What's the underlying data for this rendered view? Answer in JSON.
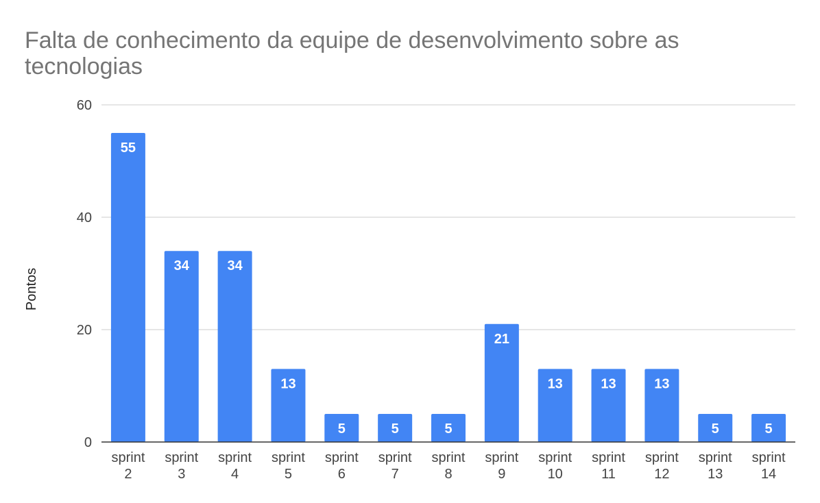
{
  "chart_data": {
    "type": "bar",
    "title_lines": [
      "Falta de conhecimento da equipe de desenvolvimento sobre as",
      "tecnologias"
    ],
    "xlabel": "",
    "ylabel": "Pontos",
    "ylim": [
      0,
      60
    ],
    "yticks": [
      "0",
      "20",
      "40",
      "60"
    ],
    "grid": true,
    "legend": "none",
    "bar_color": "#4285f4",
    "categories": [
      [
        "sprint",
        "2"
      ],
      [
        "sprint",
        "3"
      ],
      [
        "sprint",
        "4"
      ],
      [
        "sprint",
        "5"
      ],
      [
        "sprint",
        "6"
      ],
      [
        "sprint",
        "7"
      ],
      [
        "sprint",
        "8"
      ],
      [
        "sprint",
        "9"
      ],
      [
        "sprint",
        "10"
      ],
      [
        "sprint",
        "11"
      ],
      [
        "sprint",
        "12"
      ],
      [
        "sprint",
        "13"
      ],
      [
        "sprint",
        "14"
      ]
    ],
    "values": [
      55,
      34,
      34,
      13,
      5,
      5,
      5,
      21,
      13,
      13,
      13,
      5,
      5
    ],
    "data_labels": [
      "55",
      "34",
      "34",
      "13",
      "5",
      "5",
      "5",
      "21",
      "13",
      "13",
      "13",
      "5",
      "5"
    ]
  }
}
